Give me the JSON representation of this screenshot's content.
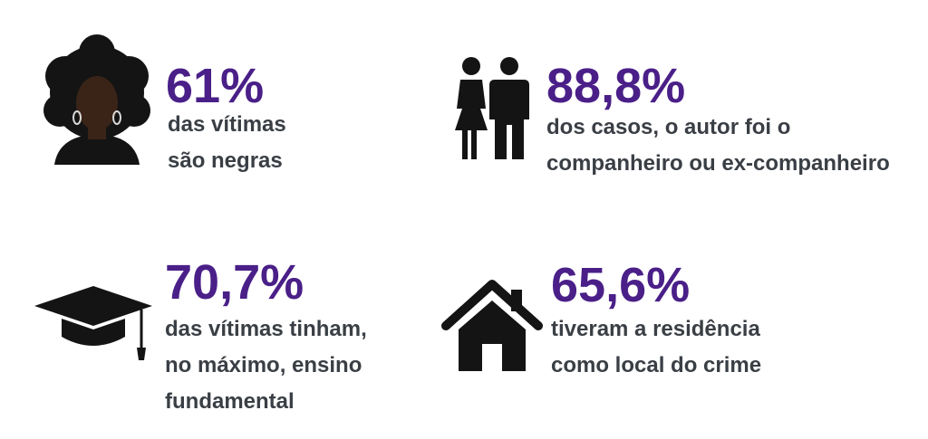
{
  "stats": [
    {
      "value": "61%",
      "lines": [
        "das vítimas",
        "são negras"
      ],
      "icon": "woman-afro-icon"
    },
    {
      "value": "88,8%",
      "lines": [
        "dos casos, o autor foi o",
        "companheiro ou ex-companheiro"
      ],
      "icon": "couple-icon"
    },
    {
      "value": "70,7%",
      "lines": [
        "das vítimas tinham,",
        "no máximo, ensino",
        "fundamental"
      ],
      "icon": "graduation-cap-icon"
    },
    {
      "value": "65,6%",
      "lines": [
        "tiveram a residência",
        "como local do crime"
      ],
      "icon": "house-icon"
    }
  ],
  "colors": {
    "accent": "#4a1f88",
    "text": "#3a3f45",
    "icon": "#1a1a1a",
    "skin": "#3a2418"
  }
}
